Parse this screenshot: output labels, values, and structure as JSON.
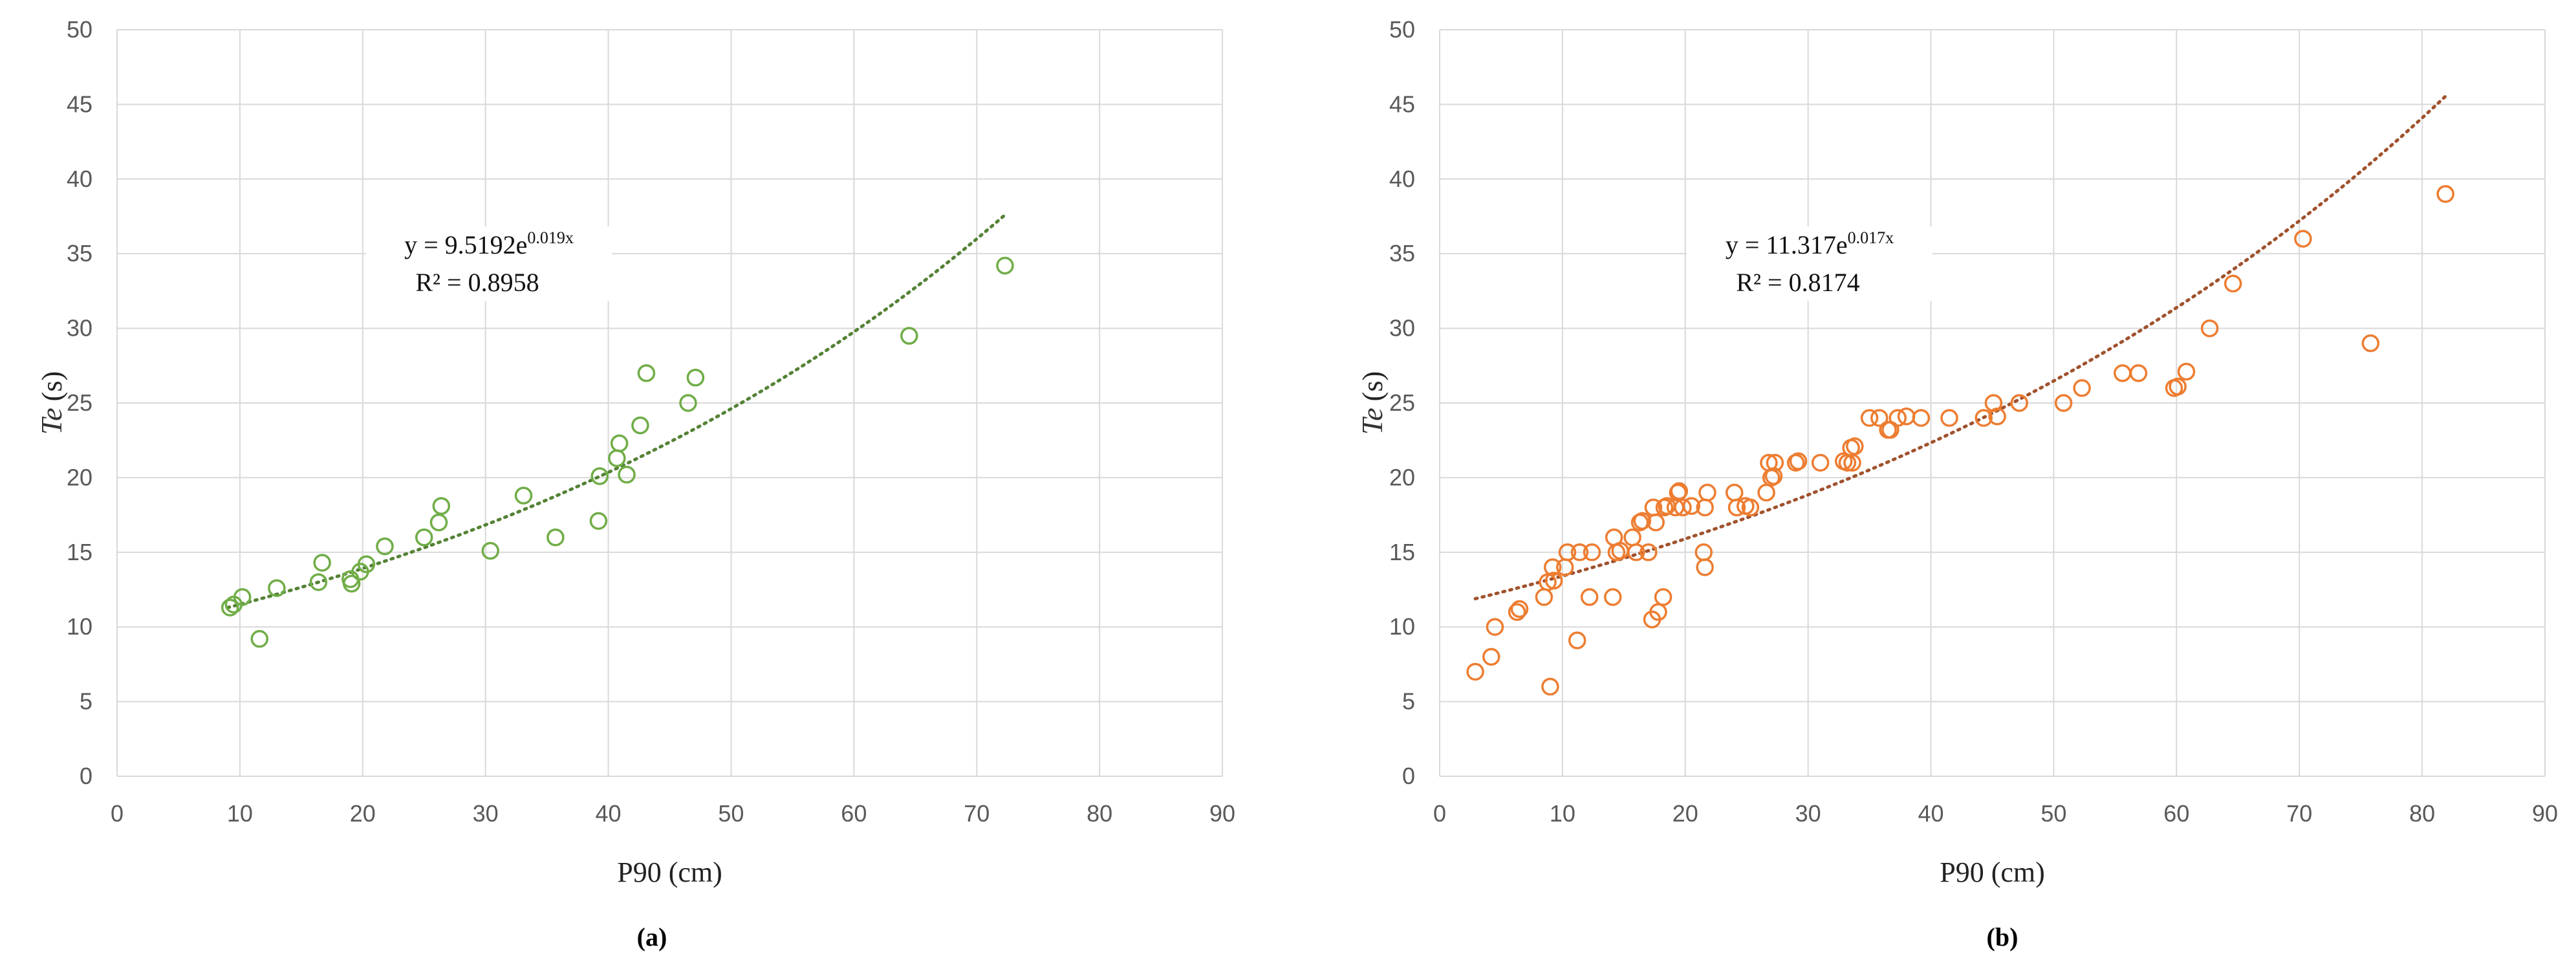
{
  "chart_data": [
    {
      "type": "scatter",
      "panel_label": "(a)",
      "xlabel": "P90 (cm)",
      "ylabel_italic": "Te",
      "ylabel_unit": "(s)",
      "xlim": [
        0,
        90
      ],
      "ylim": [
        0,
        50
      ],
      "x_ticks": [
        0,
        10,
        20,
        30,
        40,
        50,
        60,
        70,
        80,
        90
      ],
      "y_ticks": [
        0,
        5,
        10,
        15,
        20,
        25,
        30,
        35,
        40,
        45,
        50
      ],
      "grid": true,
      "marker_color": "#70ad47",
      "trend_color": "#548235",
      "equation": {
        "text": "y = 9.5192e",
        "exponent": "0.019x",
        "r2": "R² = 0.8958"
      },
      "trendline": {
        "type": "exponential",
        "a": 9.5192,
        "b": 0.019,
        "x_range": [
          9,
          72.3
        ]
      },
      "series": [
        {
          "x": [
            9.2,
            9.5,
            10.2,
            11.6,
            13.0,
            16.4,
            16.7,
            19.0,
            19.1,
            19.8,
            20.3,
            21.8,
            25.0,
            26.2,
            26.4,
            30.4,
            33.1,
            35.7,
            39.2,
            39.3,
            40.7,
            40.9,
            41.5,
            42.6,
            43.1,
            46.5,
            47.1,
            64.5,
            72.3
          ],
          "y": [
            11.3,
            11.5,
            12.0,
            9.2,
            12.6,
            13.0,
            14.3,
            13.2,
            12.9,
            13.7,
            14.2,
            15.4,
            16.0,
            17.0,
            18.1,
            15.1,
            18.8,
            16.0,
            17.1,
            20.1,
            21.3,
            22.3,
            20.2,
            23.5,
            27.0,
            25.0,
            26.7,
            29.5,
            34.2
          ]
        }
      ]
    },
    {
      "type": "scatter",
      "panel_label": "(b)",
      "xlabel": "P90 (cm)",
      "ylabel_italic": "Te",
      "ylabel_unit": "(s)",
      "xlim": [
        0,
        90
      ],
      "ylim": [
        0,
        50
      ],
      "x_ticks": [
        0,
        10,
        20,
        30,
        40,
        50,
        60,
        70,
        80,
        90
      ],
      "y_ticks": [
        0,
        5,
        10,
        15,
        20,
        25,
        30,
        35,
        40,
        45,
        50
      ],
      "grid": true,
      "marker_color": "#ed7d31",
      "trend_color": "#a0522d",
      "equation": {
        "text": "y = 11.317e",
        "exponent": "0.017x",
        "r2": "R² = 0.8174"
      },
      "trendline": {
        "type": "exponential",
        "a": 11.317,
        "b": 0.017,
        "x_range": [
          2.9,
          81.9
        ]
      },
      "series": [
        {
          "x": [
            2.9,
            4.2,
            4.5,
            6.3,
            6.5,
            8.5,
            8.8,
            9.0,
            9.2,
            9.3,
            10.2,
            10.4,
            11.2,
            11.4,
            12.2,
            12.4,
            14.1,
            14.2,
            14.4,
            14.7,
            15.7,
            16.0,
            16.3,
            16.5,
            17.0,
            17.3,
            17.4,
            17.6,
            17.8,
            18.2,
            18.3,
            18.5,
            19.2,
            19.4,
            19.5,
            19.8,
            20.5,
            21.5,
            21.6,
            21.6,
            21.8,
            24.0,
            24.2,
            24.9,
            25.3,
            26.6,
            26.8,
            27.0,
            27.2,
            27.3,
            29.0,
            29.2,
            31.0,
            32.9,
            33.2,
            33.5,
            33.6,
            33.8,
            35.0,
            35.8,
            36.5,
            36.7,
            37.3,
            38.0,
            39.2,
            41.5,
            44.3,
            45.1,
            45.4,
            47.2,
            50.8,
            52.3,
            55.6,
            56.9,
            59.8,
            60.1,
            60.8,
            62.7,
            64.6,
            70.3,
            75.8,
            81.9
          ],
          "y": [
            7.0,
            8.0,
            10.0,
            11.0,
            11.2,
            12.0,
            13.0,
            6.0,
            14.0,
            13.1,
            14.0,
            15.0,
            9.1,
            15.0,
            12.0,
            15.0,
            12.0,
            16.0,
            15.0,
            15.1,
            16.0,
            15.0,
            17.0,
            17.1,
            15.0,
            10.5,
            18.0,
            17.0,
            11.0,
            12.0,
            18.0,
            18.1,
            18.0,
            19.0,
            19.1,
            18.0,
            18.1,
            15.0,
            14.0,
            18.0,
            19.0,
            19.0,
            18.0,
            18.1,
            18.0,
            19.0,
            21.0,
            20.0,
            20.1,
            21.0,
            21.0,
            21.1,
            21.0,
            21.1,
            21.0,
            22.0,
            21.0,
            22.1,
            24.0,
            24.0,
            23.2,
            23.2,
            24.0,
            24.1,
            24.0,
            24.0,
            24.0,
            25.0,
            24.1,
            25.0,
            25.0,
            26.0,
            27.0,
            27.0,
            26.0,
            26.1,
            27.1,
            30.0,
            33.0,
            36.0,
            29.0,
            39.0
          ]
        }
      ]
    }
  ]
}
